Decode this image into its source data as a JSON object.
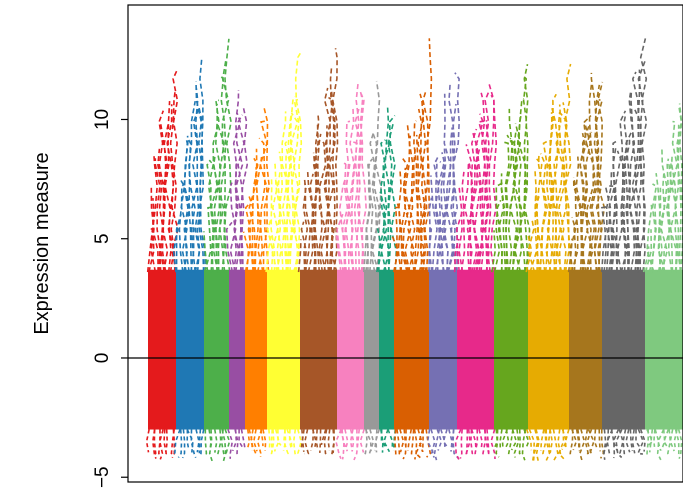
{
  "chart_data": {
    "type": "line",
    "title": "",
    "xlabel": "",
    "ylabel": "Expression measure",
    "ylim": [
      -5.2,
      14.8
    ],
    "yticks": [
      -5,
      0,
      5,
      10
    ],
    "ytick_labels": [
      "−5",
      "0",
      "5",
      "10"
    ],
    "reference_line": {
      "y": 0
    },
    "line_style": "dashed",
    "grid": false,
    "legend": "none",
    "series": [
      {
        "color": "#e41a1c",
        "upper_peak": 13.5,
        "lower_extent": -4.3
      },
      {
        "color": "#1f78b4",
        "upper_peak": 13.2,
        "lower_extent": -4.3
      },
      {
        "color": "#4daf4a",
        "upper_peak": 13.8,
        "lower_extent": -4.4
      },
      {
        "color": "#984ea3",
        "upper_peak": 13.7,
        "lower_extent": -4.3
      },
      {
        "color": "#ff7f00",
        "upper_peak": 11.2,
        "lower_extent": -4.2
      },
      {
        "color": "#ffff33",
        "upper_peak": 13.3,
        "lower_extent": -4.2
      },
      {
        "color": "#a65628",
        "upper_peak": 13.2,
        "lower_extent": -4.1
      },
      {
        "color": "#f781bf",
        "upper_peak": 13.1,
        "lower_extent": -4.3
      },
      {
        "color": "#999999",
        "upper_peak": 12.1,
        "lower_extent": -4.2
      },
      {
        "color": "#1b9e77",
        "upper_peak": 13.1,
        "lower_extent": -4.0
      },
      {
        "color": "#d95f02",
        "upper_peak": 13.6,
        "lower_extent": -4.3
      },
      {
        "color": "#7570b3",
        "upper_peak": 13.1,
        "lower_extent": -4.3
      },
      {
        "color": "#e7298a",
        "upper_peak": 13.1,
        "lower_extent": -4.3
      },
      {
        "color": "#66a61e",
        "upper_peak": 13.3,
        "lower_extent": -4.3
      },
      {
        "color": "#e6ab02",
        "upper_peak": 13.3,
        "lower_extent": -4.4
      },
      {
        "color": "#a6761d",
        "upper_peak": 13.5,
        "lower_extent": -4.3
      },
      {
        "color": "#666666",
        "upper_peak": 13.8,
        "lower_extent": -4.3
      },
      {
        "color": "#7fc97f",
        "upper_peak": 11.0,
        "lower_extent": -4.3
      }
    ]
  }
}
